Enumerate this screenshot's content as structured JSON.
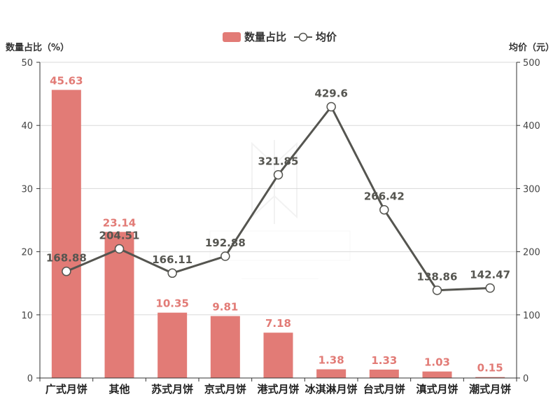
{
  "chart_data": {
    "type": "bar",
    "categories": [
      "广式月饼",
      "其他",
      "苏式月饼",
      "京式月饼",
      "港式月饼",
      "冰淇淋月饼",
      "台式月饼",
      "滇式月饼",
      "潮式月饼"
    ],
    "series": [
      {
        "name": "数量占比",
        "type": "bar",
        "axis": "left",
        "color": "#e27b76",
        "values": [
          45.63,
          23.14,
          10.35,
          9.81,
          7.18,
          1.38,
          1.33,
          1.03,
          0.15
        ],
        "labels": [
          "45.63",
          "23.14",
          "10.35",
          "9.81",
          "7.18",
          "1.38",
          "1.33",
          "1.03",
          "0.15"
        ]
      },
      {
        "name": "均价",
        "type": "line",
        "axis": "right",
        "color": "#555550",
        "values": [
          168.88,
          204.51,
          166.11,
          192.88,
          321.85,
          429.6,
          266.42,
          138.86,
          142.47
        ],
        "labels": [
          "168.88",
          "204.51",
          "166.11",
          "192.88",
          "321.85",
          "429.6",
          "266.42",
          "138.86",
          "142.47"
        ]
      }
    ],
    "y_left": {
      "label": "数量占比（%）",
      "range": [
        0,
        50
      ],
      "ticks": [
        "0",
        "10",
        "20",
        "30",
        "40",
        "50"
      ]
    },
    "y_right": {
      "label": "均价（元）",
      "range": [
        0,
        500
      ],
      "ticks": [
        "0",
        "100",
        "200",
        "300",
        "400",
        "500"
      ]
    },
    "grid": true,
    "legend_position": "top-center"
  }
}
